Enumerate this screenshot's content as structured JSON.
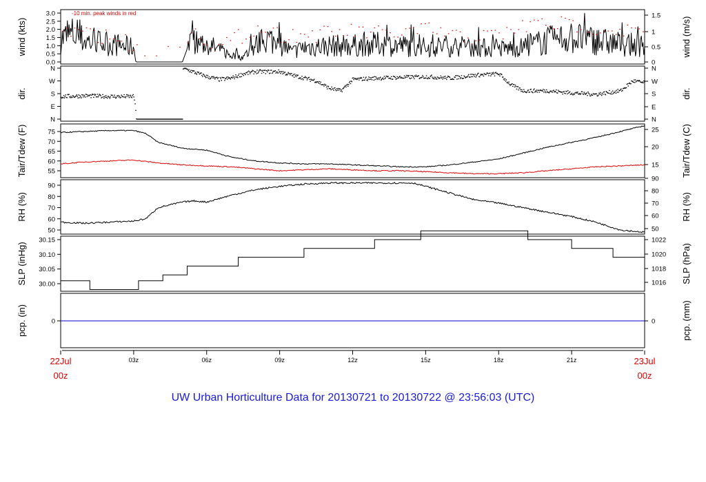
{
  "title": "UW Urban Horticulture Data for 20130721  to  20130722 @ 23:56:03  (UTC)",
  "colors": {
    "series": "#000000",
    "dewpoint": "#e00000",
    "peak": "#e00000",
    "precip": "#0000d0",
    "date": "#e00000",
    "title": "#1a1adf"
  },
  "x_axis": {
    "range_hours": [
      0,
      24
    ],
    "ticks": [
      {
        "hour": 3,
        "label": "03z"
      },
      {
        "hour": 6,
        "label": "06z"
      },
      {
        "hour": 9,
        "label": "09z"
      },
      {
        "hour": 12,
        "label": "12z"
      },
      {
        "hour": 15,
        "label": "15z"
      },
      {
        "hour": 18,
        "label": "18z"
      },
      {
        "hour": 21,
        "label": "21z"
      }
    ],
    "start_date": "22Jul",
    "start_time": "00z",
    "end_date": "23Jul",
    "end_time": "00z"
  },
  "chart_data": [
    {
      "type": "line",
      "id": "wind",
      "ylabel": "wind (kts)",
      "ylabel_right": "wind (m/s)",
      "ylim": [
        0,
        3.2
      ],
      "yticks": [
        "0.0",
        "0.5",
        "1.0",
        "1.5",
        "2.0",
        "2.5",
        "3.0"
      ],
      "yticks_right": [
        "0",
        "0.5",
        "1",
        "1.5"
      ],
      "annotation": "-10 min. peak winds in red",
      "series": [
        {
          "name": "wind speed",
          "x": [
            0,
            0.5,
            1,
            1.5,
            2,
            2.5,
            3,
            3.1,
            4,
            5,
            5.3,
            6,
            7,
            7.5,
            8,
            8.5,
            9,
            9.5,
            10,
            11,
            12,
            13,
            14,
            15,
            16,
            17,
            18,
            19,
            20,
            21,
            22,
            23,
            24
          ],
          "y": [
            1.4,
            1.7,
            1.3,
            1.2,
            1.1,
            1.0,
            0.9,
            0.0,
            0.0,
            0.0,
            1.2,
            1.1,
            0.4,
            0.3,
            1.0,
            1.4,
            1.2,
            0.6,
            0.9,
            1.0,
            1.0,
            1.1,
            1.0,
            0.9,
            1.0,
            0.9,
            0.8,
            0.9,
            1.3,
            1.5,
            1.3,
            1.1,
            1.0
          ]
        },
        {
          "name": "10 min. peak",
          "x": [
            0.5,
            1.5,
            2.5,
            4,
            5.5,
            6.5,
            8,
            9,
            10.5,
            12,
            13.5,
            15,
            16.5,
            18,
            19.5,
            21,
            22.5,
            23.5
          ],
          "y": [
            2.4,
            2.2,
            1.9,
            0.6,
            2.4,
            1.4,
            2.6,
            2.2,
            2.2,
            2.4,
            2.2,
            2.5,
            2.0,
            2.2,
            2.9,
            2.8,
            2.6,
            2.4
          ]
        }
      ]
    },
    {
      "type": "scatter",
      "id": "direction",
      "ylabel": "dir.",
      "ylabel_right": "dir.",
      "yticks": [
        "N",
        "E",
        "S",
        "W",
        "N"
      ],
      "yticks_right": [
        "N",
        "E",
        "S",
        "W",
        "N"
      ],
      "series": [
        {
          "name": "wind direction",
          "x": [
            0,
            1,
            2,
            3,
            3.1,
            5,
            5.5,
            6,
            6.5,
            7,
            7.5,
            8,
            8.5,
            9,
            9.5,
            10,
            10.5,
            11,
            11.5,
            12,
            13,
            14,
            15,
            16,
            17,
            18,
            18.5,
            19,
            20,
            21,
            22,
            23,
            23.5,
            24
          ],
          "y": [
            160,
            165,
            160,
            160,
            0,
            360,
            330,
            300,
            280,
            290,
            320,
            335,
            335,
            335,
            310,
            290,
            270,
            220,
            200,
            280,
            290,
            295,
            300,
            290,
            310,
            320,
            240,
            200,
            200,
            185,
            175,
            200,
            270,
            255
          ]
        }
      ]
    },
    {
      "type": "line",
      "id": "temperature",
      "ylabel": "Tair/Tdew (F)",
      "ylabel_right": "Tair/Tdew (C)",
      "ylim": [
        52,
        80
      ],
      "yticks": [
        "55",
        "60",
        "65",
        "70",
        "75"
      ],
      "yticks_right": [
        "15",
        "20",
        "25"
      ],
      "series": [
        {
          "name": "Tair",
          "x": [
            0,
            1,
            2,
            3,
            3.5,
            4,
            5,
            6,
            7,
            8,
            9,
            10,
            11,
            12,
            13,
            14,
            15,
            16,
            17,
            18,
            19,
            20,
            21,
            22,
            23,
            24
          ],
          "y": [
            74.5,
            75,
            75.5,
            75.5,
            74,
            69.5,
            66.5,
            65.5,
            62,
            60,
            59,
            58.5,
            58.5,
            58,
            57.5,
            57,
            57,
            58,
            59.5,
            61,
            64,
            67,
            69.5,
            72,
            75,
            78
          ]
        },
        {
          "name": "Tdew",
          "x": [
            0,
            1,
            2,
            3,
            4,
            5,
            6,
            7,
            8,
            9,
            10,
            11,
            12,
            13,
            14,
            15,
            16,
            17,
            18,
            19,
            20,
            21,
            22,
            23,
            24
          ],
          "y": [
            58.5,
            59.5,
            60,
            60.5,
            59,
            58,
            57.5,
            57,
            56,
            55,
            55.5,
            56,
            55.5,
            55,
            55,
            54.5,
            54,
            53.5,
            53.5,
            54,
            55,
            56,
            57,
            57.5,
            58
          ]
        }
      ]
    },
    {
      "type": "line",
      "id": "humidity",
      "ylabel": "RH (%)",
      "ylabel_right": "RH (%)",
      "ylim": [
        43,
        93
      ],
      "yticks": [
        "50",
        "60",
        "70",
        "80",
        "90"
      ],
      "yticks_right": [
        "50",
        "60",
        "70",
        "80",
        "90"
      ],
      "series": [
        {
          "name": "RH",
          "x": [
            0,
            1,
            2,
            3,
            3.5,
            4,
            5,
            5.5,
            6,
            7,
            8,
            9,
            10,
            11,
            12,
            13,
            14,
            14.5,
            15,
            16,
            17,
            18,
            19,
            20,
            21,
            22,
            23,
            24
          ],
          "y": [
            57,
            56,
            57,
            58,
            60,
            70,
            75,
            76,
            75,
            81,
            86,
            89,
            91,
            92,
            92,
            92,
            92,
            92,
            89,
            83,
            77,
            74,
            70,
            66,
            62,
            57,
            50,
            48
          ]
        }
      ]
    },
    {
      "type": "line",
      "id": "pressure",
      "ylabel": "SLP (inHg)",
      "ylabel_right": "SLP (hPa)",
      "ylim": [
        29.98,
        30.19
      ],
      "yticks": [
        "30.00",
        "30.05",
        "30.10",
        "30.15"
      ],
      "yticks_right": [
        "1016",
        "1018",
        "1020",
        "1022"
      ],
      "series": [
        {
          "name": "SLP step",
          "x": [
            0,
            1.2,
            1.2,
            3.2,
            3.2,
            4.2,
            4.2,
            5.2,
            5.2,
            7.3,
            7.3,
            10,
            10,
            12.9,
            12.9,
            14.8,
            14.8,
            19.2,
            19.2,
            21,
            21,
            22.7,
            22.7,
            24
          ],
          "y": [
            30.01,
            30.01,
            29.98,
            29.98,
            30.01,
            30.01,
            30.03,
            30.03,
            30.06,
            30.06,
            30.09,
            30.09,
            30.12,
            30.12,
            30.15,
            30.15,
            30.18,
            30.18,
            30.15,
            30.15,
            30.12,
            30.12,
            30.09,
            30.09
          ]
        }
      ]
    },
    {
      "type": "line",
      "id": "precipitation",
      "ylabel": "pcp. (in)",
      "ylabel_right": "pcp. (mm)",
      "ylim": [
        -1,
        1
      ],
      "yticks": [
        "0"
      ],
      "yticks_right": [
        "0"
      ],
      "series": [
        {
          "name": "precip",
          "x": [
            0,
            24
          ],
          "y": [
            0,
            0
          ]
        }
      ]
    }
  ]
}
